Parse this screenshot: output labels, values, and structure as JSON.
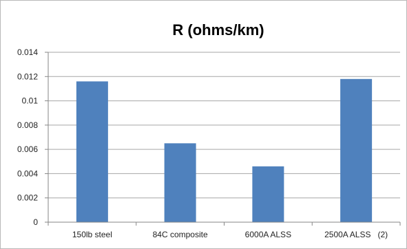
{
  "chart_data": {
    "type": "bar",
    "title": "R (ohms/km)",
    "xlabel": "",
    "ylabel": "",
    "categories": [
      "150lb steel",
      "84C composite",
      "6000A ALSS",
      "2500A ALSS   (2)"
    ],
    "values": [
      0.0116,
      0.0065,
      0.0046,
      0.0118
    ],
    "ylim": [
      0,
      0.014
    ],
    "yticks": [
      "0",
      "0.002",
      "0.004",
      "0.006",
      "0.008",
      "0.01",
      "0.012",
      "0.014"
    ],
    "grid": true,
    "legend": "none",
    "colors": {
      "bar": "#4f81bd",
      "grid": "#a6a6a6",
      "axis": "#868686"
    }
  }
}
